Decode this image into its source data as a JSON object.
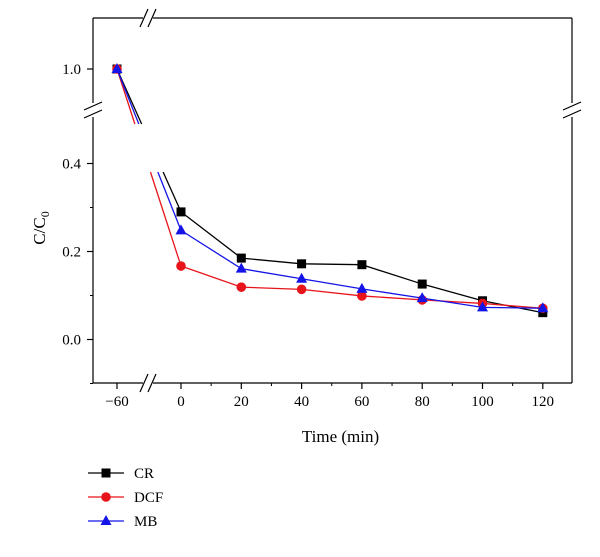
{
  "chart_data": {
    "type": "line",
    "xlabel": "Time (min)",
    "ylabel": "C/C",
    "ylabel_subscript": "0",
    "x": [
      -60,
      0,
      20,
      40,
      60,
      80,
      100,
      120
    ],
    "x_ticks": [
      "−60",
      "0",
      "20",
      "40",
      "60",
      "80",
      "100",
      "120"
    ],
    "y_ticks_lower": [
      "0.0",
      "0.2",
      "0.4"
    ],
    "y_ticks_upper": [
      "1.0"
    ],
    "ylim_lower": [
      -0.1,
      0.5
    ],
    "ylim_upper": [
      0.95,
      1.1
    ],
    "xlim": [
      -75,
      130
    ],
    "axis_breaks": {
      "x": true,
      "y": true
    },
    "legend_position": "bottom-left",
    "grid": false,
    "series": [
      {
        "name": "CR",
        "marker": "square",
        "color": "#000000",
        "values": [
          1.0,
          0.29,
          0.185,
          0.172,
          0.17,
          0.126,
          0.088,
          0.061
        ]
      },
      {
        "name": "DCF",
        "marker": "circle",
        "color": "#e8141b",
        "values": [
          1.0,
          0.167,
          0.119,
          0.114,
          0.099,
          0.09,
          0.082,
          0.071
        ]
      },
      {
        "name": "MB",
        "marker": "triangle",
        "color": "#1414e8",
        "values": [
          1.0,
          0.248,
          0.161,
          0.138,
          0.115,
          0.094,
          0.073,
          0.071
        ]
      }
    ]
  }
}
